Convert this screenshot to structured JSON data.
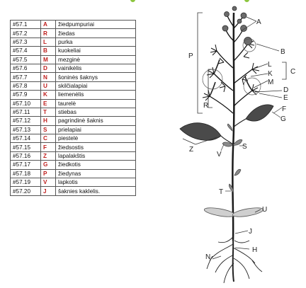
{
  "top_mark_color": "#8dc63f",
  "legend": [
    {
      "num": "#57.1",
      "letter": "A",
      "name": "žiedpumpuriai"
    },
    {
      "num": "#57.2",
      "letter": "R",
      "name": "žiedas"
    },
    {
      "num": "#57.3",
      "letter": "L",
      "name": "purka"
    },
    {
      "num": "#57.4",
      "letter": "B",
      "name": "kuokeliai"
    },
    {
      "num": "#57.5",
      "letter": "M",
      "name": "mezginė"
    },
    {
      "num": "#57.6",
      "letter": "D",
      "name": "vainikėlis"
    },
    {
      "num": "#57.7",
      "letter": "N",
      "name": "šoninės šaknys"
    },
    {
      "num": "#57.8",
      "letter": "U",
      "name": "skilčialapiai"
    },
    {
      "num": "#57.9",
      "letter": "K",
      "name": "liemenėlis"
    },
    {
      "num": "#57.10",
      "letter": "E",
      "name": "taurelė"
    },
    {
      "num": "#57.11",
      "letter": "T",
      "name": "stiebas"
    },
    {
      "num": "#57.12",
      "letter": "H",
      "name": "pagrindinė šaknis"
    },
    {
      "num": "#57.13",
      "letter": "S",
      "name": "prielapiai"
    },
    {
      "num": "#57.14",
      "letter": "C",
      "name": "piestelė"
    },
    {
      "num": "#57.15",
      "letter": "F",
      "name": "žiedsostis"
    },
    {
      "num": "#57.16",
      "letter": "Z",
      "name": "lapalakštis"
    },
    {
      "num": "#57.17",
      "letter": "G",
      "name": "žiedkotis"
    },
    {
      "num": "#57.18",
      "letter": "P",
      "name": "žiedynas"
    },
    {
      "num": "#57.19",
      "letter": "V",
      "name": "lapkotis"
    },
    {
      "num": "#57.20",
      "letter": "J",
      "name": "šaknies kaklelis."
    }
  ],
  "diagram_labels": {
    "a": "A",
    "b": "B",
    "c": "C",
    "d": "D",
    "e": "E",
    "f": "F",
    "g": "G",
    "h": "H",
    "j": "J",
    "k": "K",
    "l": "L",
    "m": "M",
    "n": "N",
    "p": "P",
    "r": "R",
    "s": "S",
    "t": "T",
    "u": "U",
    "v": "V",
    "z": "Z"
  }
}
